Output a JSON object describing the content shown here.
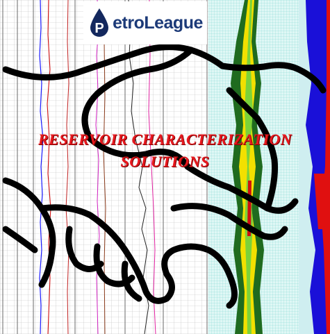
{
  "logo": {
    "text": "PetroLeague",
    "icon": "oil-drop-icon",
    "text_color": "#1c3a78"
  },
  "headline": {
    "line1": "RESERVOIR CHARACTERIZATION",
    "line2": "SOLUTIONS",
    "color": "#e8181e"
  },
  "illustration": {
    "subject": "handshake-outline",
    "background": "well-log-chart"
  }
}
